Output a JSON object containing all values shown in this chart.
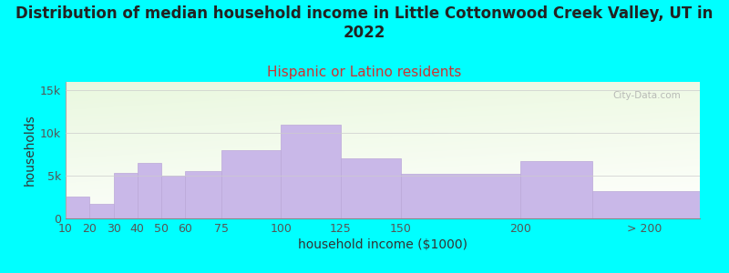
{
  "title": "Distribution of median household income in Little Cottonwood Creek Valley, UT in\n2022",
  "subtitle": "Hispanic or Latino residents",
  "xlabel": "household income ($1000)",
  "ylabel": "households",
  "background_color": "#00FFFF",
  "bar_color": "#C9B8E8",
  "bar_edge_color": "#BBA8D8",
  "watermark": "City-Data.com",
  "title_fontsize": 12,
  "subtitle_fontsize": 11,
  "subtitle_color": "#CC3333",
  "axis_label_fontsize": 10,
  "tick_label_fontsize": 9,
  "categories": [
    "10",
    "20",
    "30",
    "40",
    "50",
    "60",
    "75",
    "100",
    "125",
    "150",
    "200",
    "> 200"
  ],
  "bar_lefts": [
    10,
    20,
    30,
    40,
    50,
    60,
    75,
    100,
    125,
    150,
    200,
    230
  ],
  "bar_widths": [
    10,
    10,
    10,
    10,
    10,
    15,
    25,
    25,
    25,
    50,
    30,
    45
  ],
  "values": [
    2600,
    1700,
    5300,
    6500,
    5000,
    5600,
    8000,
    11000,
    7000,
    5200,
    6700,
    3200
  ],
  "xlim": [
    10,
    275
  ],
  "ylim": [
    0,
    16000
  ],
  "yticks": [
    0,
    5000,
    10000,
    15000
  ],
  "ytick_labels": [
    "0",
    "5k",
    "10k",
    "15k"
  ],
  "xtick_positions": [
    10,
    20,
    30,
    40,
    50,
    60,
    75,
    100,
    125,
    150,
    200,
    252
  ],
  "xtick_labels": [
    "10",
    "20",
    "30",
    "40",
    "50",
    "60",
    "75",
    "100",
    "125",
    "150",
    "200",
    "> 200"
  ]
}
